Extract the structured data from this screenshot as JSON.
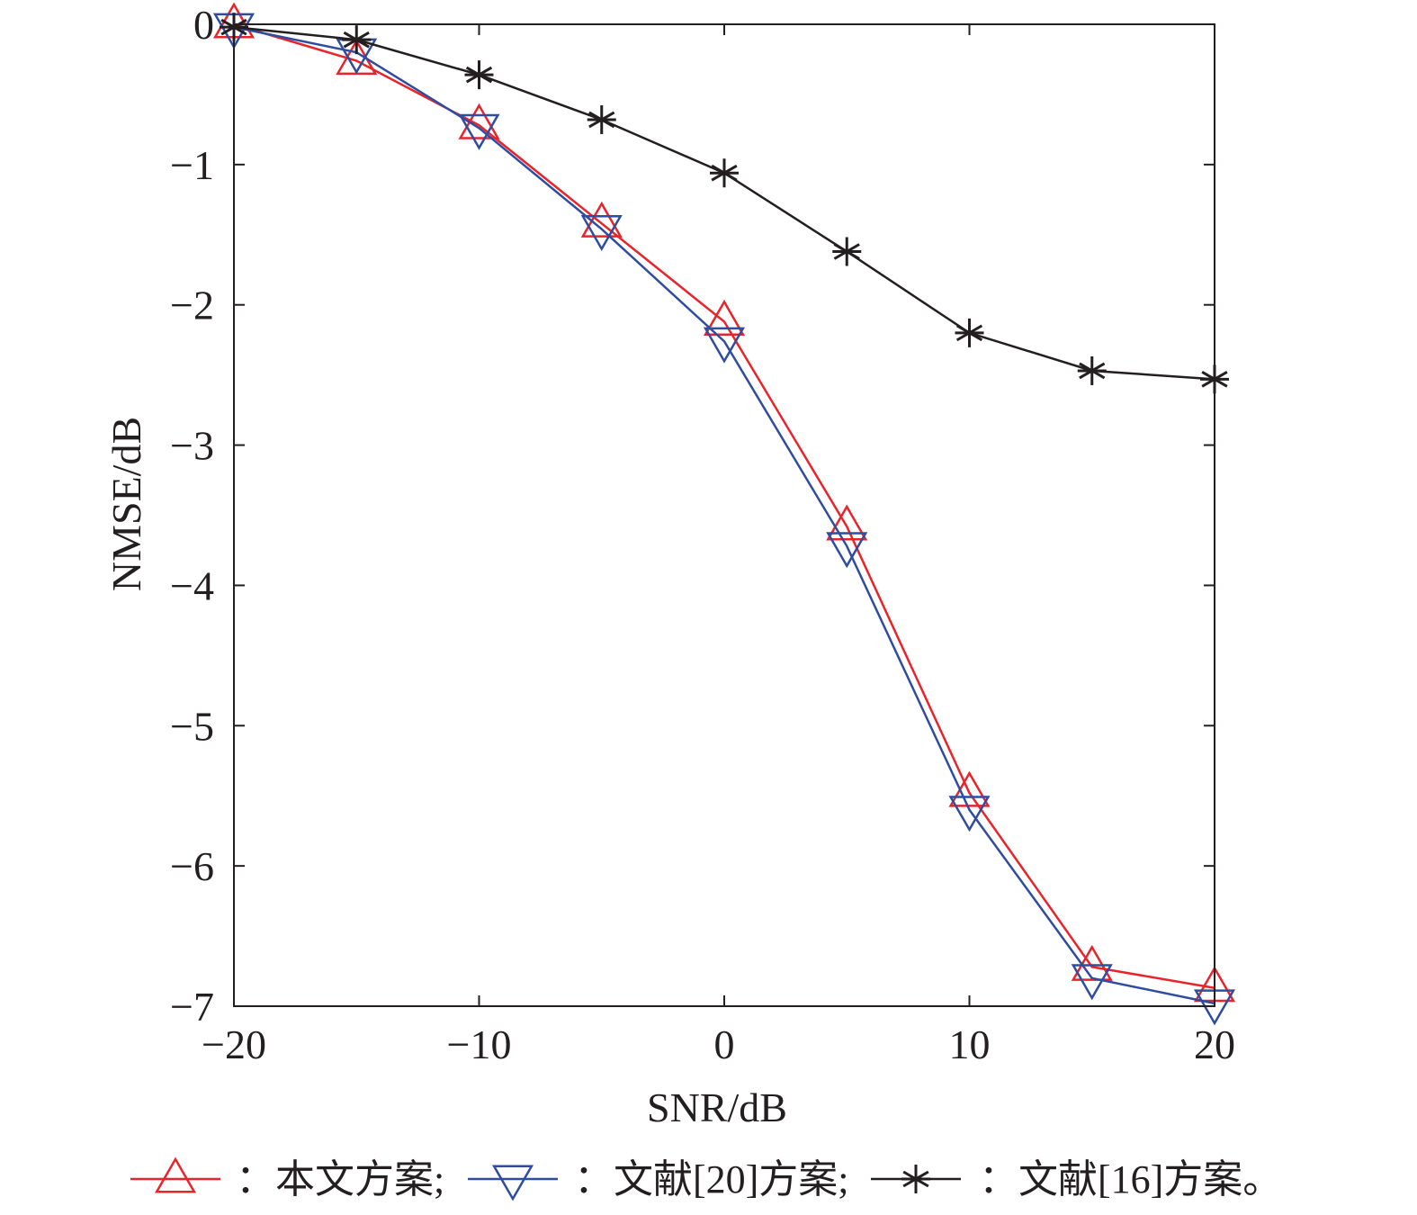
{
  "chart_data": {
    "type": "line",
    "title": "",
    "xlabel": "SNR/dB",
    "ylabel": "NMSE/dB",
    "xlim": [
      -20,
      20
    ],
    "ylim": [
      -7,
      0
    ],
    "xticks": [
      -20,
      -10,
      0,
      10,
      20
    ],
    "yticks": [
      0,
      -1,
      -2,
      -3,
      -4,
      -5,
      -6,
      -7
    ],
    "xtick_labels": [
      "−20",
      "−10",
      "0",
      "10",
      "20"
    ],
    "ytick_labels": [
      "0",
      "−1",
      "−2",
      "−3",
      "−4",
      "−5",
      "−6",
      "−7"
    ],
    "grid": false,
    "x": [
      -20,
      -15,
      -10,
      -5,
      0,
      5,
      10,
      15,
      20
    ],
    "series": [
      {
        "name": "本文方案",
        "color": "#e8242b",
        "marker": "triangle-up",
        "values": [
          0.0,
          -0.26,
          -0.72,
          -1.42,
          -2.12,
          -3.58,
          -5.48,
          -6.72,
          -6.87
        ]
      },
      {
        "name": "文献[20]方案",
        "color": "#2f4da0",
        "marker": "triangle-down",
        "values": [
          -0.02,
          -0.2,
          -0.74,
          -1.46,
          -2.26,
          -3.72,
          -5.6,
          -6.8,
          -6.98
        ]
      },
      {
        "name": "文献[16]方案",
        "color": "#231f20",
        "marker": "asterisk",
        "values": [
          -0.02,
          -0.11,
          -0.36,
          -0.68,
          -1.06,
          -1.62,
          -2.2,
          -2.47,
          -2.53
        ]
      }
    ],
    "legend": {
      "placement": "bottom",
      "items": [
        {
          "text": "：本文方案;"
        },
        {
          "text": "：文献[20]方案;"
        },
        {
          "text": "：文献[16]方案。"
        }
      ]
    }
  }
}
